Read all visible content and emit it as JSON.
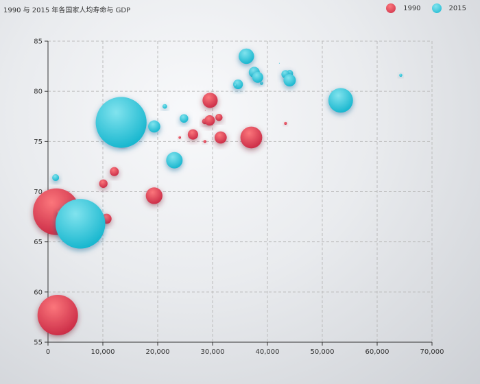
{
  "chart_data": {
    "type": "scatter",
    "title": "1990 与 2015 年各国家人均寿命与 GDP",
    "xlim": [
      0,
      70000
    ],
    "ylim": [
      55,
      85
    ],
    "xticks": [
      0,
      10000,
      20000,
      30000,
      40000,
      50000,
      60000,
      70000
    ],
    "xtick_labels": [
      "0",
      "10,000",
      "20,000",
      "30,000",
      "40,000",
      "50,000",
      "60,000",
      "70,000"
    ],
    "yticks": [
      55,
      60,
      65,
      70,
      75,
      80,
      85
    ],
    "ytick_labels": [
      "55",
      "60",
      "65",
      "70",
      "75",
      "80",
      "85"
    ],
    "grid": "dashed",
    "legend_position": "top-right",
    "point_format": [
      "gdp_per_capita",
      "life_expectancy",
      "population"
    ],
    "series": [
      {
        "name": "1990",
        "color": "#e54d5e",
        "data": [
          [
            28604,
            77,
            17096869
          ],
          [
            31163,
            77.4,
            27662440
          ],
          [
            1516,
            68,
            1154605773
          ],
          [
            13670,
            74.7,
            10582082
          ],
          [
            28599,
            75,
            4986705
          ],
          [
            29476,
            77.1,
            56943299
          ],
          [
            31476,
            75.4,
            78958237
          ],
          [
            28666,
            78.1,
            254830
          ],
          [
            1777,
            57.7,
            870601776
          ],
          [
            29550,
            79.1,
            122249285
          ],
          [
            2076,
            67.9,
            20194354
          ],
          [
            12087,
            72,
            42972254
          ],
          [
            24021,
            75.4,
            3397534
          ],
          [
            43296,
            76.8,
            4240375
          ],
          [
            10088,
            70.8,
            38195258
          ],
          [
            19349,
            69.6,
            147568552
          ],
          [
            10670,
            67.3,
            53994605
          ],
          [
            26424,
            75.7,
            57110117
          ],
          [
            37062,
            75.4,
            252847810
          ]
        ]
      },
      {
        "name": "2015",
        "color": "#3fcbe0",
        "data": [
          [
            44056,
            81.8,
            23968973
          ],
          [
            43294,
            81.7,
            35939927
          ],
          [
            13334,
            76.9,
            1376048943
          ],
          [
            21291,
            78.5,
            11389562
          ],
          [
            38923,
            80.8,
            5503457
          ],
          [
            37599,
            81.9,
            64395345
          ],
          [
            44053,
            81.1,
            80688545
          ],
          [
            42182,
            82.8,
            329425
          ],
          [
            5903,
            66.8,
            1311050527
          ],
          [
            36162,
            83.5,
            126573481
          ],
          [
            1390,
            71.4,
            25155317
          ],
          [
            34644,
            80.7,
            50293439
          ],
          [
            34186,
            80.6,
            4528526
          ],
          [
            64304,
            81.6,
            5210967
          ],
          [
            24787,
            77.3,
            38611794
          ],
          [
            23038,
            73.13,
            143456918
          ],
          [
            19360,
            76.5,
            78665830
          ],
          [
            38225,
            81.4,
            64715810
          ],
          [
            53354,
            79.1,
            321773631
          ]
        ]
      }
    ]
  }
}
